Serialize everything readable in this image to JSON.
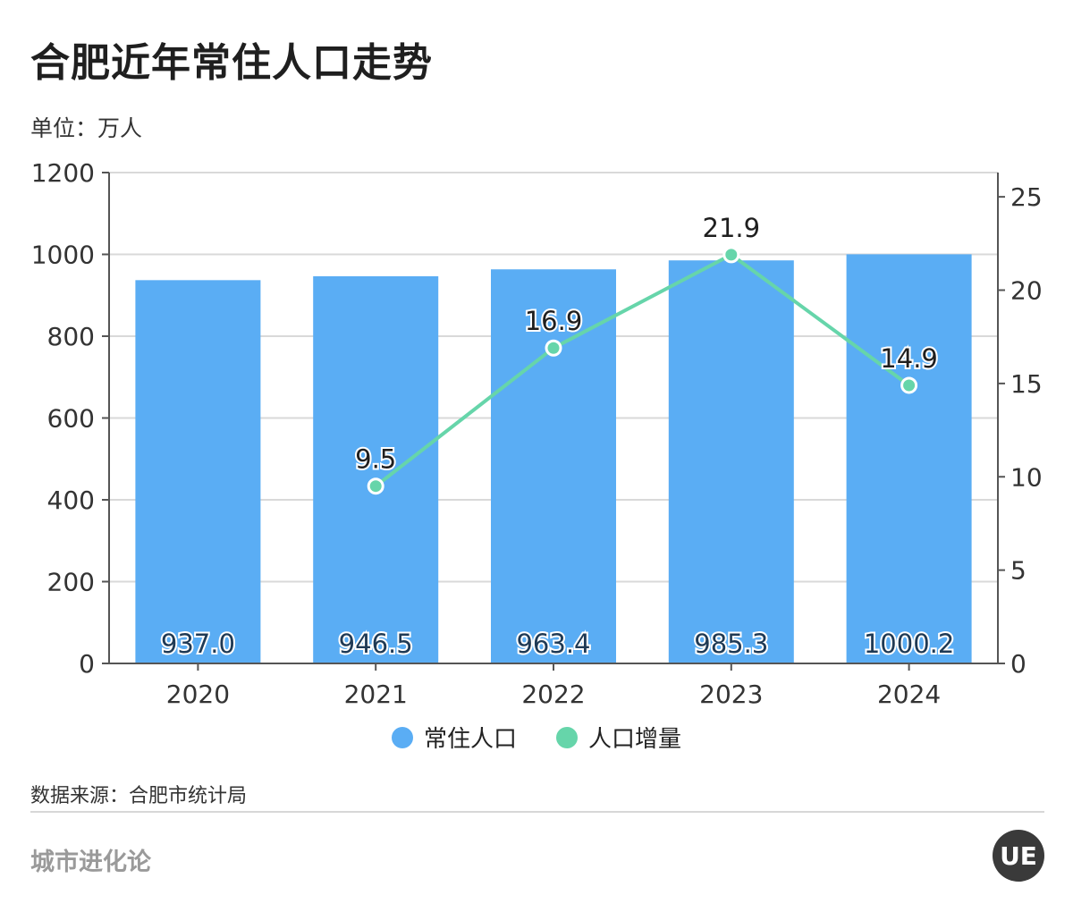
{
  "page": {
    "title": "合肥近年常住人口走势",
    "unit_label": "单位：万人",
    "source": "数据来源：合肥市统计局",
    "brand": "城市进化论",
    "logo_text": "UE"
  },
  "colors": {
    "bar": "#5aadf4",
    "line": "#66d5aa",
    "grid": "#d9d9d9",
    "axis": "#555555"
  },
  "chart_data": {
    "type": "bar",
    "categories": [
      "2020",
      "2021",
      "2022",
      "2023",
      "2024"
    ],
    "series": [
      {
        "name": "常住人口",
        "type": "bar",
        "axis": "left",
        "values": [
          937.0,
          946.5,
          963.4,
          985.3,
          1000.2
        ],
        "labels": [
          "937.0",
          "946.5",
          "963.4",
          "985.3",
          "1000.2"
        ]
      },
      {
        "name": "人口增量",
        "type": "line",
        "axis": "right",
        "values": [
          null,
          9.5,
          16.9,
          21.9,
          14.9
        ],
        "labels": [
          "",
          "9.5",
          "16.9",
          "21.9",
          "14.9"
        ]
      }
    ],
    "left_axis": {
      "range": [
        0,
        1200
      ],
      "ticks": [
        0,
        200,
        400,
        600,
        800,
        1000,
        1200
      ],
      "tick_labels": [
        "0",
        "200",
        "400",
        "600",
        "800",
        "1000",
        "1200"
      ]
    },
    "right_axis": {
      "range": [
        0,
        26.3
      ],
      "ticks": [
        0,
        5,
        10,
        15,
        20,
        25
      ],
      "tick_labels": [
        "0",
        "5",
        "10",
        "15",
        "20",
        "25"
      ]
    },
    "grid": true,
    "legend_position": "bottom-center"
  }
}
